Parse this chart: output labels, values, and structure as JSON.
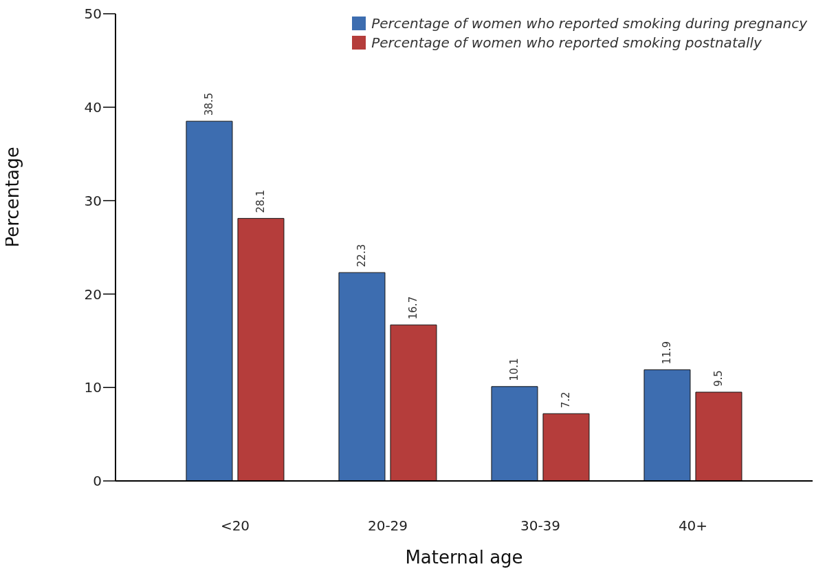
{
  "chart_data": {
    "type": "bar",
    "xlabel": "Maternal age",
    "ylabel": "Percentage",
    "categories": [
      "<20",
      "20-29",
      "30-39",
      "40+"
    ],
    "series": [
      {
        "name": "Percentage of women who reported smoking during pregnancy",
        "color": "#3d6db0",
        "values": [
          38.5,
          22.3,
          10.1,
          11.9
        ]
      },
      {
        "name": "Percentage of women who reported smoking postnatally",
        "color": "#b53d3b",
        "values": [
          28.1,
          16.7,
          7.2,
          9.5
        ]
      }
    ],
    "ylim": [
      0,
      50
    ],
    "yticks": [
      0,
      10,
      20,
      30,
      40,
      50
    ],
    "grid": false,
    "legend": "top right",
    "data_labels": true
  }
}
